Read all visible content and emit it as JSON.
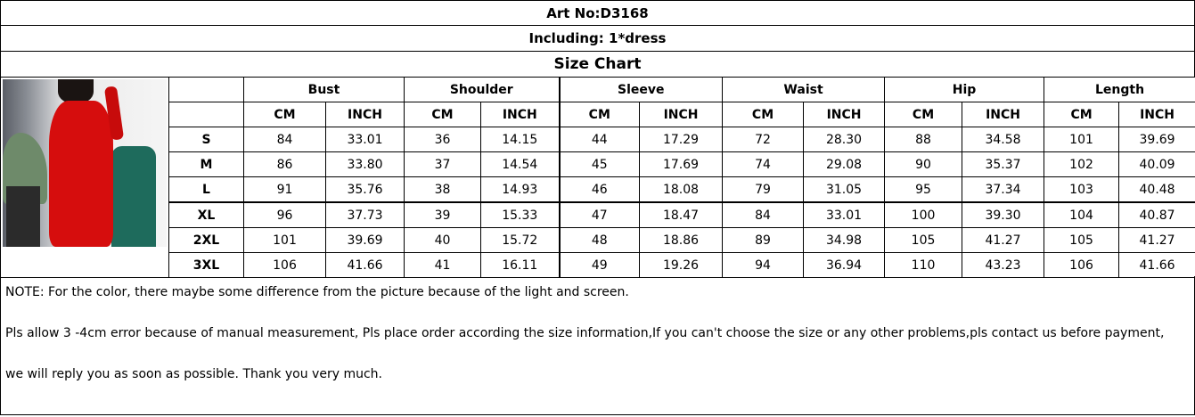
{
  "header": {
    "art_no": "Art No:D3168",
    "including": "Including:  1*dress",
    "title": "Size Chart"
  },
  "product_image": {
    "description_icon": "red-dress-photo",
    "color": "#d60d0d"
  },
  "table": {
    "measurements": [
      "Bust",
      "Shoulder",
      "Sleeve",
      "Waist",
      "Hip",
      "Length"
    ],
    "units": [
      "CM",
      "INCH"
    ],
    "rows": [
      {
        "size": "S",
        "values": [
          "84",
          "33.01",
          "36",
          "14.15",
          "44",
          "17.29",
          "72",
          "28.30",
          "88",
          "34.58",
          "101",
          "39.69"
        ]
      },
      {
        "size": "M",
        "values": [
          "86",
          "33.80",
          "37",
          "14.54",
          "45",
          "17.69",
          "74",
          "29.08",
          "90",
          "35.37",
          "102",
          "40.09"
        ]
      },
      {
        "size": "L",
        "values": [
          "91",
          "35.76",
          "38",
          "14.93",
          "46",
          "18.08",
          "79",
          "31.05",
          "95",
          "37.34",
          "103",
          "40.48"
        ]
      },
      {
        "size": "XL",
        "values": [
          "96",
          "37.73",
          "39",
          "15.33",
          "47",
          "18.47",
          "84",
          "33.01",
          "100",
          "39.30",
          "104",
          "40.87"
        ]
      },
      {
        "size": "2XL",
        "values": [
          "101",
          "39.69",
          "40",
          "15.72",
          "48",
          "18.86",
          "89",
          "34.98",
          "105",
          "41.27",
          "105",
          "41.27"
        ]
      },
      {
        "size": "3XL",
        "values": [
          "106",
          "41.66",
          "41",
          "16.11",
          "49",
          "19.26",
          "94",
          "36.94",
          "110",
          "43.23",
          "106",
          "41.66"
        ]
      }
    ]
  },
  "notes": [
    "NOTE:  For the color, there maybe some difference from the picture because of the light and screen.",
    "Pls allow 3 -4cm error because of manual measurement, Pls place order according the size information,If you can't choose the size or any other problems,pls contact us before payment,",
    "we will reply you as soon as possible. Thank you very much."
  ]
}
